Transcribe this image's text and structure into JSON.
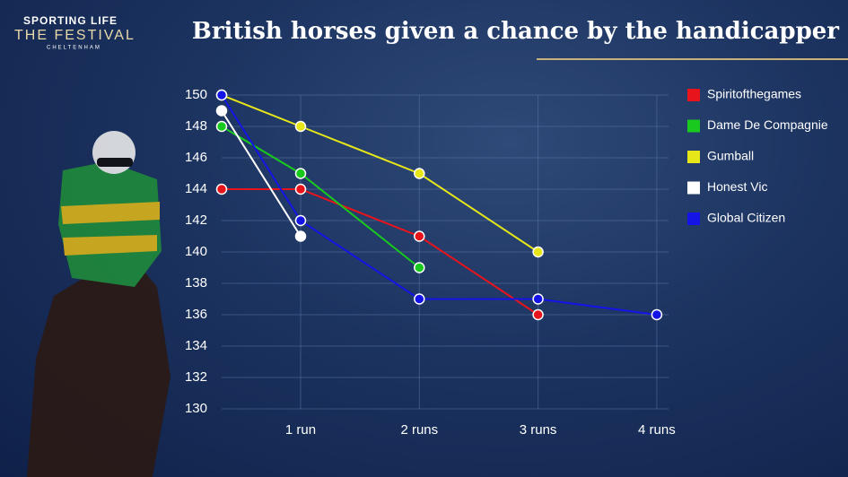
{
  "logo": {
    "brand": "SPORTING LIFE",
    "event": "THE FESTIVAL",
    "venue": "CHELTENHAM"
  },
  "chart_data": {
    "type": "line",
    "title": "British horses given a chance by the handicapper",
    "categories": [
      null,
      "1 run",
      "2 runs",
      "3 runs",
      "4 runs"
    ],
    "series": [
      {
        "name": "Spiritofthegames",
        "color": "#e8141b",
        "values": [
          144,
          144,
          141,
          136,
          null
        ]
      },
      {
        "name": "Dame De Compagnie",
        "color": "#19c91e",
        "values": [
          148,
          145,
          139,
          null,
          null
        ]
      },
      {
        "name": "Gumball",
        "color": "#e6e619",
        "values": [
          150,
          148,
          145,
          140,
          null
        ]
      },
      {
        "name": "Honest Vic",
        "color": "#ffffff",
        "values": [
          149,
          141,
          null,
          null,
          null
        ]
      },
      {
        "name": "Global Citizen",
        "color": "#1414e6",
        "values": [
          150,
          142,
          137,
          137,
          136
        ]
      }
    ],
    "ylim": [
      130,
      150
    ],
    "yticks": [
      130,
      132,
      134,
      136,
      138,
      140,
      142,
      144,
      146,
      148,
      150
    ],
    "grid": true,
    "legend": "right"
  }
}
